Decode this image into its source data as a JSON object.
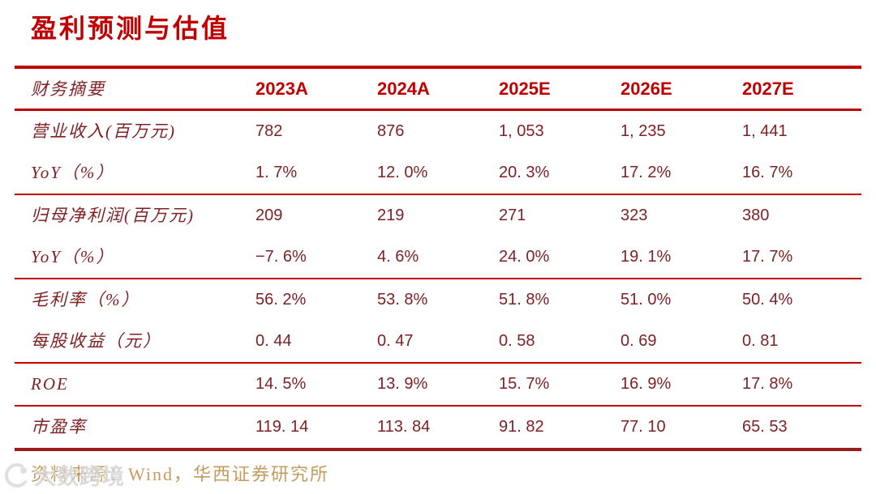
{
  "page": {
    "title": "盈利预测与估值",
    "source_note": "资料来源：Wind，华西证券研究所",
    "watermark_text": "大数跨境"
  },
  "colors": {
    "accent_red": "#C00000",
    "data_text_maroon": "#7E2124",
    "bottom_rule_red": "#9E1B1B",
    "source_gold": "#C49B5F",
    "watermark_gray": "#CFCFCF"
  },
  "table": {
    "header": [
      "财务摘要",
      "2023A",
      "2024A",
      "2025E",
      "2026E",
      "2027E"
    ],
    "groups": [
      {
        "rows": [
          {
            "label": "营业收入(百万元)",
            "values": [
              "782",
              "876",
              "1, 053",
              "1, 235",
              "1, 441"
            ]
          },
          {
            "label": "YoY（%）",
            "values": [
              "1. 7%",
              "12. 0%",
              "20. 3%",
              "17. 2%",
              "16. 7%"
            ]
          }
        ]
      },
      {
        "rows": [
          {
            "label": "归母净利润(百万元)",
            "values": [
              "209",
              "219",
              "271",
              "323",
              "380"
            ]
          },
          {
            "label": "YoY（%）",
            "values": [
              "−7. 6%",
              "4. 6%",
              "24. 0%",
              "19. 1%",
              "17. 7%"
            ]
          }
        ]
      },
      {
        "rows": [
          {
            "label": "毛利率（%）",
            "values": [
              "56. 2%",
              "53. 8%",
              "51. 8%",
              "51. 0%",
              "50. 4%"
            ]
          },
          {
            "label": "每股收益（元）",
            "values": [
              "0. 44",
              "0. 47",
              "0. 58",
              "0. 69",
              "0. 81"
            ]
          }
        ]
      },
      {
        "rows": [
          {
            "label": "ROE",
            "values": [
              "14. 5%",
              "13. 9%",
              "15. 7%",
              "16. 9%",
              "17. 8%"
            ]
          }
        ]
      },
      {
        "rows": [
          {
            "label": "市盈率",
            "values": [
              "119. 14",
              "113. 84",
              "91. 82",
              "77. 10",
              "65. 53"
            ]
          }
        ]
      }
    ]
  }
}
